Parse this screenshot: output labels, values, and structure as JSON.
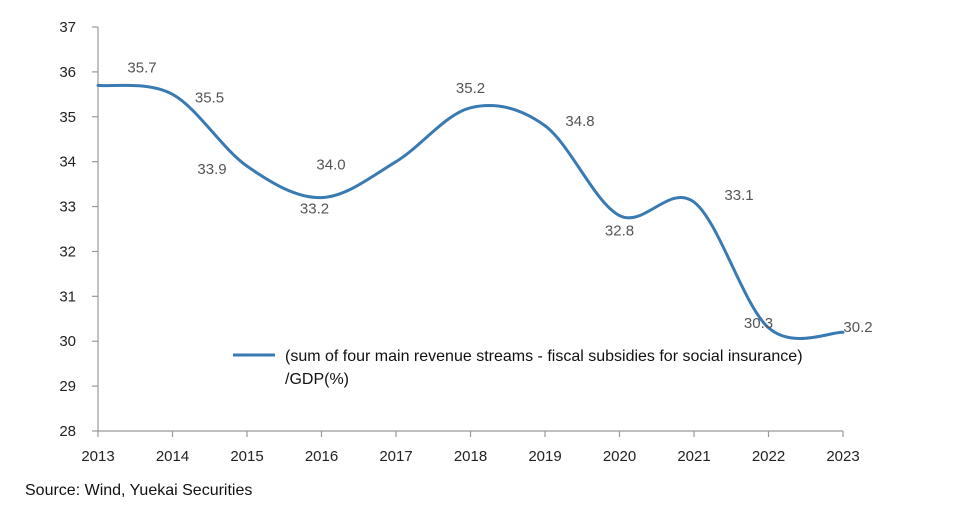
{
  "chart_data": {
    "type": "line",
    "title": "",
    "xlabel": "",
    "ylabel": "",
    "x": [
      "2013",
      "2014",
      "2015",
      "2016",
      "2017",
      "2018",
      "2019",
      "2020",
      "2021",
      "2022",
      "2023"
    ],
    "ylim": [
      28,
      37
    ],
    "y_ticks": [
      "28",
      "29",
      "30",
      "31",
      "32",
      "33",
      "34",
      "35",
      "36",
      "37"
    ],
    "series": [
      {
        "name": "(sum of four main revenue streams - fiscal subsidies for social insurance) /GDP(%)",
        "values": [
          35.7,
          35.5,
          33.9,
          33.2,
          34.0,
          35.2,
          34.8,
          32.8,
          33.1,
          30.3,
          30.2
        ],
        "data_labels": [
          "35.7",
          "35.5",
          "33.9",
          "33.2",
          "34.0",
          "35.2",
          "34.8",
          "32.8",
          "33.1",
          "30.3",
          "30.2"
        ],
        "color": "#3a7ab3"
      }
    ],
    "legend_lines": [
      "(sum of four main revenue streams - fiscal subsidies for social insurance)",
      "/GDP(%)"
    ],
    "legend_position": "center-right",
    "grid": false,
    "smooth": true
  },
  "source": "Source: Wind, Yuekai Securities"
}
